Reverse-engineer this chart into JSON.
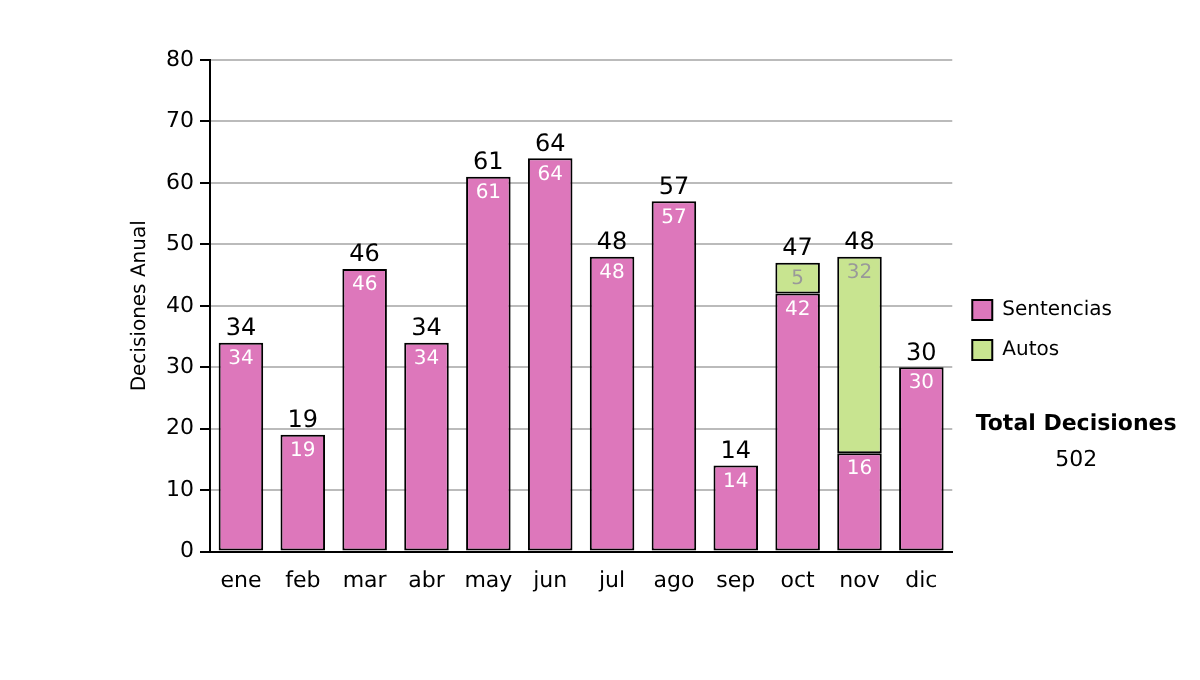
{
  "chart_data": {
    "type": "bar",
    "stacked": true,
    "ylabel": "Decisiones Anual",
    "categories": [
      "ene",
      "feb",
      "mar",
      "abr",
      "may",
      "jun",
      "jul",
      "ago",
      "sep",
      "oct",
      "nov",
      "dic"
    ],
    "series": [
      {
        "name": "Sentencias",
        "color": "#dd77bb",
        "values": [
          34,
          19,
          46,
          34,
          61,
          64,
          48,
          57,
          14,
          42,
          16,
          30
        ],
        "value_labels": [
          "34",
          "19",
          "46",
          "34",
          "61",
          "64",
          "48",
          "57",
          "14",
          "42",
          "16",
          "30"
        ]
      },
      {
        "name": "Autos",
        "color": "#c8e490",
        "values": [
          null,
          null,
          null,
          null,
          null,
          null,
          null,
          null,
          null,
          5,
          32,
          null
        ],
        "value_labels": [
          null,
          null,
          null,
          null,
          null,
          null,
          null,
          null,
          null,
          "5",
          "32",
          null
        ]
      }
    ],
    "totals": [
      "34",
      "19",
      "46",
      "34",
      "61",
      "64",
      "48",
      "57",
      "14",
      "47",
      "48",
      "30"
    ],
    "ylim": [
      0,
      80
    ],
    "yticks": [
      0,
      10,
      20,
      30,
      40,
      50,
      60,
      70,
      80
    ],
    "grid": "y",
    "legend": "right",
    "annotations": [
      "Total Decisiones",
      "502"
    ]
  }
}
